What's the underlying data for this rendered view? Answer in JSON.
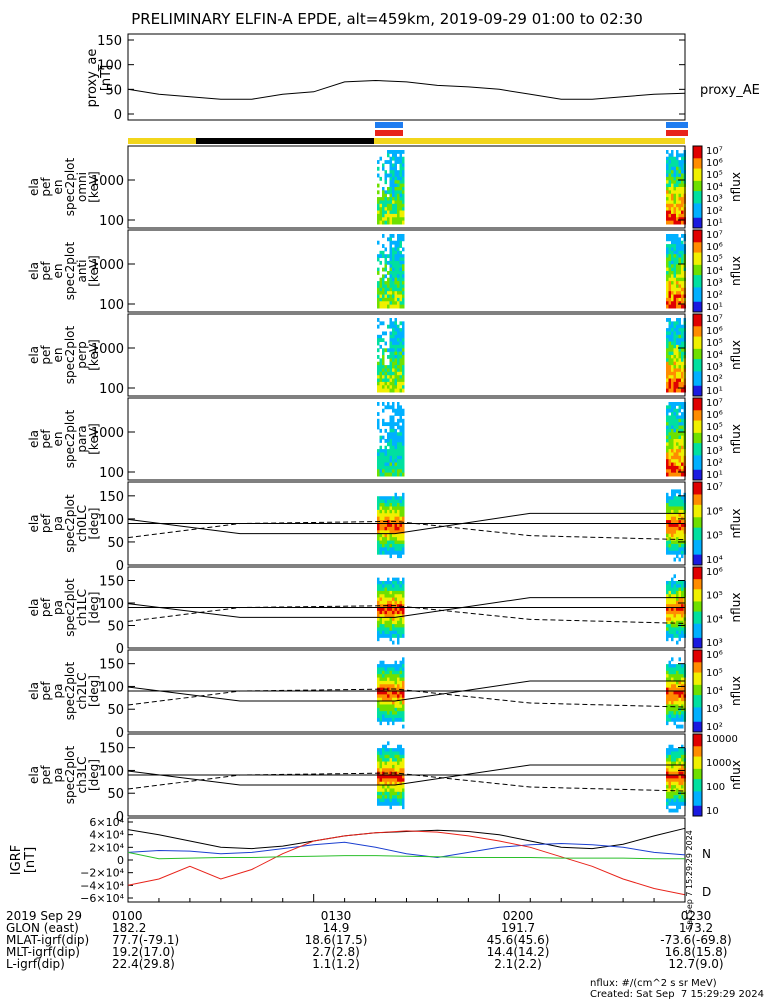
{
  "title": "PRELIMINARY ELFIN-A EPDE, alt=459km, 2019-09-29 01:00 to 02:30",
  "colors": {
    "yellow": "#f2d61b",
    "black": "#000000",
    "blue": "#1e7cf0",
    "red": "#e8231a",
    "green": "#2bbf2b",
    "bluegrf": "#1b3fd0"
  },
  "chart_data": [
    {
      "type": "line",
      "id": "proxy_ae",
      "ylabel": [
        "proxy_ae",
        "[nT]"
      ],
      "ylim": [
        0,
        150
      ],
      "yticks": [
        "150",
        "100",
        "50",
        "0"
      ],
      "legend": "proxy_AE",
      "x": [
        "01:00",
        "01:05",
        "01:10",
        "01:15",
        "01:20",
        "01:25",
        "01:30",
        "01:35",
        "01:40",
        "01:45",
        "01:50",
        "01:55",
        "02:00",
        "02:05",
        "02:10",
        "02:15",
        "02:20",
        "02:25",
        "02:30"
      ],
      "values": [
        50,
        40,
        35,
        30,
        30,
        40,
        45,
        65,
        68,
        65,
        58,
        55,
        50,
        40,
        30,
        30,
        35,
        40,
        42
      ]
    },
    {
      "type": "heatmap",
      "id": "spec_omni",
      "ylabel": [
        "ela",
        "pef",
        "en",
        "spec2plot",
        "omni",
        "[keV]"
      ],
      "yticks": [
        "1000",
        "100"
      ],
      "colorbar": {
        "label": "nflux",
        "ticks": [
          "10⁷",
          "10⁶",
          "10⁵",
          "10⁴",
          "10³",
          "10²",
          "10¹"
        ]
      }
    },
    {
      "type": "heatmap",
      "id": "spec_anti",
      "ylabel": [
        "ela",
        "pef",
        "en",
        "spec2plot",
        "anti",
        "[keV]"
      ],
      "yticks": [
        "1000",
        "100"
      ],
      "colorbar": {
        "label": "nflux",
        "ticks": [
          "10⁷",
          "10⁶",
          "10⁵",
          "10⁴",
          "10³",
          "10²",
          "10¹"
        ]
      }
    },
    {
      "type": "heatmap",
      "id": "spec_perp",
      "ylabel": [
        "ela",
        "pef",
        "en",
        "spec2plot",
        "perp",
        "[keV]"
      ],
      "yticks": [
        "1000",
        "100"
      ],
      "colorbar": {
        "label": "nflux",
        "ticks": [
          "10⁷",
          "10⁶",
          "10⁵",
          "10⁴",
          "10³",
          "10²",
          "10¹"
        ]
      }
    },
    {
      "type": "heatmap",
      "id": "spec_para",
      "ylabel": [
        "ela",
        "pef",
        "en",
        "spec2plot",
        "para",
        "[keV]"
      ],
      "yticks": [
        "1000",
        "100"
      ],
      "colorbar": {
        "label": "nflux",
        "ticks": [
          "10⁷",
          "10⁶",
          "10⁵",
          "10⁴",
          "10³",
          "10²",
          "10¹"
        ]
      }
    },
    {
      "type": "heatmap",
      "id": "pa_ch0",
      "ylabel": [
        "ela",
        "pef",
        "pa",
        "spec2plot",
        "ch0LC",
        "[deg]"
      ],
      "yticks": [
        "150",
        "100",
        "50",
        "0"
      ],
      "ylim": [
        0,
        180
      ],
      "colorbar": {
        "label": "nflux",
        "ticks": [
          "10⁷",
          "10⁶",
          "10⁵",
          "10⁴"
        ]
      }
    },
    {
      "type": "heatmap",
      "id": "pa_ch1",
      "ylabel": [
        "ela",
        "pef",
        "pa",
        "spec2plot",
        "ch1LC",
        "[deg]"
      ],
      "yticks": [
        "150",
        "100",
        "50",
        "0"
      ],
      "ylim": [
        0,
        180
      ],
      "colorbar": {
        "label": "nflux",
        "ticks": [
          "10⁶",
          "10⁵",
          "10⁴",
          "10³"
        ]
      }
    },
    {
      "type": "heatmap",
      "id": "pa_ch2",
      "ylabel": [
        "ela",
        "pef",
        "pa",
        "spec2plot",
        "ch2LC",
        "[deg]"
      ],
      "yticks": [
        "150",
        "100",
        "50",
        "0"
      ],
      "ylim": [
        0,
        180
      ],
      "colorbar": {
        "label": "nflux",
        "ticks": [
          "10⁶",
          "10⁵",
          "10⁴",
          "10³",
          "10²"
        ]
      }
    },
    {
      "type": "heatmap",
      "id": "pa_ch3",
      "ylabel": [
        "ela",
        "pef",
        "pa",
        "spec2plot",
        "ch3LC",
        "[deg]"
      ],
      "yticks": [
        "150",
        "100",
        "50",
        "0"
      ],
      "ylim": [
        0,
        180
      ],
      "colorbar": {
        "label": "nflux",
        "ticks": [
          "10000",
          "1000",
          "100",
          "10"
        ]
      }
    },
    {
      "type": "line",
      "id": "igrf",
      "ylabel": [
        "IGRF",
        "[nT]"
      ],
      "ylim": [
        -60000,
        60000
      ],
      "yticks": [
        "6×10⁴",
        "4×10⁴",
        "2×10⁴",
        "0",
        "−2×10⁴",
        "−4×10⁴",
        "−6×10⁴"
      ],
      "legend": [
        "N",
        "D"
      ],
      "x": [
        "01:00",
        "01:05",
        "01:10",
        "01:15",
        "01:20",
        "01:25",
        "01:30",
        "01:35",
        "01:40",
        "01:45",
        "01:50",
        "01:55",
        "02:00",
        "02:05",
        "02:10",
        "02:15",
        "02:20",
        "02:25",
        "02:30"
      ],
      "series": [
        {
          "values": [
            48000,
            40000,
            30000,
            20000,
            18000,
            22000,
            30000,
            38000,
            43000,
            45000,
            47000,
            45000,
            40000,
            30000,
            20000,
            18000,
            25000,
            38000,
            50000
          ]
        },
        {
          "values": [
            12000,
            15000,
            14000,
            10000,
            12000,
            18000,
            24000,
            28000,
            20000,
            10000,
            4000,
            12000,
            20000,
            24000,
            26000,
            24000,
            20000,
            12000,
            8000
          ]
        },
        {
          "values": [
            -40000,
            -30000,
            -10000,
            -30000,
            -15000,
            10000,
            30000,
            38000,
            43000,
            46000,
            44000,
            38000,
            30000,
            20000,
            5000,
            -10000,
            -30000,
            -45000,
            -55000
          ]
        },
        {
          "values": [
            12000,
            2000,
            3000,
            4000,
            4000,
            5000,
            6000,
            7000,
            7000,
            6000,
            5000,
            4000,
            4000,
            4000,
            3000,
            3000,
            3000,
            2000,
            2000
          ]
        }
      ]
    }
  ],
  "timebar": {
    "stamp": "Sat Sep  7 15:29:29 2024"
  },
  "footer": {
    "rows": [
      {
        "label": "2019 Sep 29",
        "values": [
          "0100",
          "0130",
          "0200",
          "0230"
        ]
      },
      {
        "label": "GLON (east)",
        "values": [
          "182.2",
          "14.9",
          "191.7",
          "173.2"
        ]
      },
      {
        "label": "MLAT-igrf(dip)",
        "values": [
          "77.7(-79.1)",
          "18.6(17.5)",
          "45.6(45.6)",
          "-73.6(-69.8)"
        ]
      },
      {
        "label": "MLT-igrf(dip)",
        "values": [
          "19.2(17.0)",
          "2.7(2.8)",
          "14.4(14.2)",
          "16.8(15.8)"
        ]
      },
      {
        "label": "L-igrf(dip)",
        "values": [
          "22.4(29.8)",
          "1.1(1.2)",
          "2.1(2.2)",
          "12.7(9.0)"
        ]
      }
    ],
    "units": "nflux: #/(cm^2 s sr MeV)",
    "created": "Created: Sat Sep  7 15:29:29 2024"
  }
}
